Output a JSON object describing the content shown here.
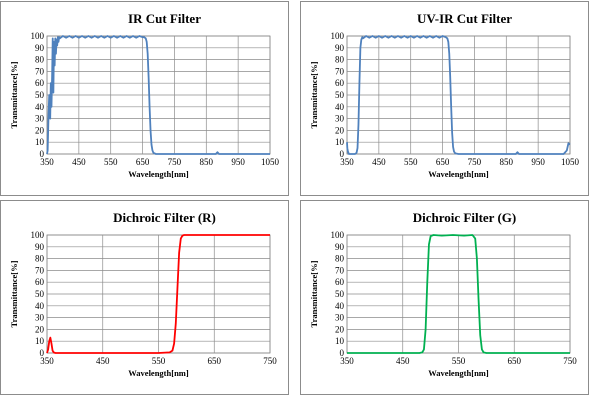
{
  "chart_data": [
    {
      "type": "line",
      "title": "IR Cut Filter",
      "xlabel": "Wavelength[nm]",
      "ylabel": "Transmittance[%]",
      "xlim": [
        350,
        1050
      ],
      "ylim": [
        0,
        100
      ],
      "xticks": [
        350,
        450,
        550,
        650,
        750,
        850,
        950,
        1050
      ],
      "yticks": [
        0,
        10,
        20,
        30,
        40,
        50,
        60,
        70,
        80,
        90,
        100
      ],
      "grid": true,
      "color": "#4f81bd",
      "series": [
        {
          "x": [
            350,
            352,
            355,
            357,
            360,
            362,
            364,
            366,
            368,
            370,
            372,
            374,
            376,
            378,
            380,
            382,
            384,
            386,
            388,
            390,
            395,
            400,
            410,
            420,
            430,
            440,
            450,
            460,
            470,
            480,
            490,
            500,
            510,
            520,
            530,
            540,
            550,
            560,
            570,
            580,
            590,
            600,
            610,
            620,
            630,
            640,
            650,
            655,
            660,
            663,
            666,
            669,
            672,
            675,
            678,
            681,
            684,
            688,
            692,
            700,
            720,
            750,
            800,
            850,
            880,
            885,
            890,
            900,
            950,
            1000,
            1050
          ],
          "y": [
            0,
            3,
            35,
            50,
            30,
            60,
            40,
            65,
            98,
            52,
            95,
            75,
            98,
            85,
            97,
            92,
            99,
            95,
            99,
            98,
            99,
            100,
            98.5,
            100,
            98.5,
            100,
            98.5,
            100,
            98.5,
            100,
            98.5,
            100,
            98.5,
            100,
            98.5,
            100,
            98.5,
            100,
            98.5,
            100,
            98.5,
            100,
            98.5,
            100,
            98.5,
            100,
            99,
            99,
            98,
            95,
            85,
            65,
            40,
            20,
            8,
            3,
            1,
            0.5,
            0,
            0,
            0,
            0,
            0,
            0,
            0,
            1.5,
            0,
            0,
            0,
            0,
            0
          ]
        }
      ]
    },
    {
      "type": "line",
      "title": "UV-IR Cut Filter",
      "xlabel": "Wavelength[nm]",
      "ylabel": "Transmittance[%]",
      "xlim": [
        350,
        1050
      ],
      "ylim": [
        0,
        100
      ],
      "xticks": [
        350,
        450,
        550,
        650,
        750,
        850,
        950,
        1050
      ],
      "yticks": [
        0,
        10,
        20,
        30,
        40,
        50,
        60,
        70,
        80,
        90,
        100
      ],
      "grid": true,
      "color": "#4f81bd",
      "series": [
        {
          "x": [
            350,
            351,
            353,
            356,
            360,
            365,
            370,
            375,
            380,
            383,
            386,
            389,
            392,
            395,
            398,
            400,
            410,
            420,
            430,
            440,
            450,
            460,
            470,
            480,
            490,
            500,
            510,
            520,
            530,
            540,
            550,
            560,
            570,
            580,
            590,
            600,
            610,
            620,
            630,
            640,
            650,
            660,
            665,
            668,
            671,
            674,
            677,
            680,
            683,
            686,
            690,
            700,
            750,
            800,
            850,
            880,
            885,
            890,
            900,
            950,
            1000,
            1030,
            1040,
            1045,
            1050
          ],
          "y": [
            10,
            5,
            2,
            0,
            0,
            0,
            0,
            0,
            1,
            5,
            25,
            60,
            90,
            97,
            99,
            98,
            100,
            98.5,
            100,
            98.5,
            100,
            98.5,
            100,
            98.5,
            100,
            98.5,
            100,
            98.5,
            100,
            98.5,
            100,
            98.5,
            100,
            98.5,
            100,
            98.5,
            100,
            98.5,
            100,
            98.5,
            100,
            99,
            98,
            95,
            85,
            65,
            40,
            18,
            6,
            2,
            0.5,
            0,
            0,
            0,
            0,
            0,
            1.5,
            0,
            0,
            0,
            0,
            0,
            3,
            9,
            8
          ]
        }
      ]
    },
    {
      "type": "line",
      "title": "Dichroic Filter (R)",
      "xlabel": "Wavelength[nm]",
      "ylabel": "Transmittance[%]",
      "xlim": [
        350,
        750
      ],
      "ylim": [
        0,
        100
      ],
      "xticks": [
        350,
        450,
        550,
        650,
        750
      ],
      "yticks": [
        0,
        10,
        20,
        30,
        40,
        50,
        60,
        70,
        80,
        90,
        100
      ],
      "grid": true,
      "color": "#ff0000",
      "series": [
        {
          "x": [
            350,
            352,
            354,
            356,
            358,
            360,
            362,
            365,
            370,
            400,
            450,
            500,
            550,
            570,
            575,
            578,
            581,
            584,
            587,
            590,
            593,
            596,
            600,
            620,
            650,
            700,
            750
          ],
          "y": [
            0,
            3,
            10,
            13,
            8,
            2,
            0.5,
            0,
            0,
            0,
            0,
            0,
            0,
            0.5,
            2,
            8,
            25,
            55,
            85,
            97,
            99.5,
            100,
            100,
            100,
            100,
            100,
            100
          ]
        }
      ]
    },
    {
      "type": "line",
      "title": "Dichroic Filter (G)",
      "xlabel": "Wavelength[nm]",
      "ylabel": "Transmittance[%]",
      "xlim": [
        350,
        750
      ],
      "ylim": [
        0,
        100
      ],
      "xticks": [
        350,
        450,
        550,
        650,
        750
      ],
      "yticks": [
        0,
        10,
        20,
        30,
        40,
        50,
        60,
        70,
        80,
        90,
        100
      ],
      "grid": true,
      "color": "#00b050",
      "series": [
        {
          "x": [
            350,
            400,
            450,
            480,
            485,
            488,
            491,
            494,
            497,
            500,
            505,
            520,
            540,
            560,
            575,
            580,
            583,
            586,
            589,
            592,
            595,
            600,
            650,
            700,
            750
          ],
          "y": [
            0,
            0,
            0,
            0,
            0.5,
            3,
            20,
            60,
            92,
            99,
            100,
            99.5,
            100,
            99.5,
            100,
            97,
            80,
            45,
            15,
            3,
            0.5,
            0,
            0,
            0,
            0
          ]
        }
      ]
    }
  ]
}
